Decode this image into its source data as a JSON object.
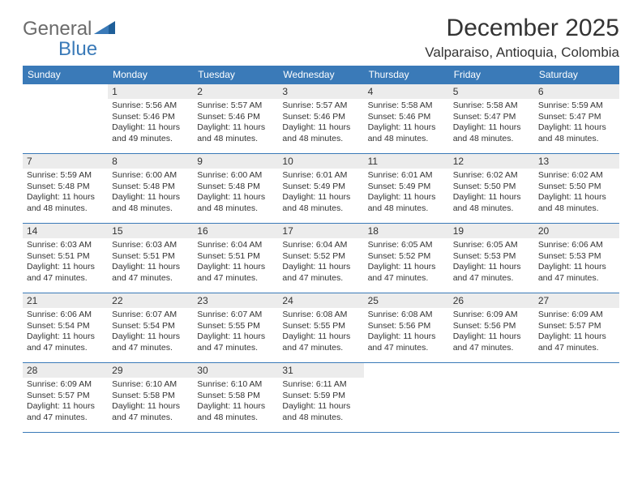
{
  "logo": {
    "general": "General",
    "blue": "Blue"
  },
  "title": "December 2025",
  "location": "Valparaiso, Antioquia, Colombia",
  "accent_color": "#3a7ab8",
  "daynum_bg": "#ececec",
  "text_color": "#333333",
  "background": "#ffffff",
  "row_border": "#3a7ab8",
  "cell_font_size": 10.5,
  "header_font_size": 12,
  "title_font_size": 30,
  "location_font_size": 17,
  "days": [
    "Sunday",
    "Monday",
    "Tuesday",
    "Wednesday",
    "Thursday",
    "Friday",
    "Saturday"
  ],
  "weeks": [
    [
      {
        "n": "",
        "sunrise": "",
        "sunset": "",
        "daylight": ""
      },
      {
        "n": "1",
        "sunrise": "Sunrise: 5:56 AM",
        "sunset": "Sunset: 5:46 PM",
        "daylight": "Daylight: 11 hours and 49 minutes."
      },
      {
        "n": "2",
        "sunrise": "Sunrise: 5:57 AM",
        "sunset": "Sunset: 5:46 PM",
        "daylight": "Daylight: 11 hours and 48 minutes."
      },
      {
        "n": "3",
        "sunrise": "Sunrise: 5:57 AM",
        "sunset": "Sunset: 5:46 PM",
        "daylight": "Daylight: 11 hours and 48 minutes."
      },
      {
        "n": "4",
        "sunrise": "Sunrise: 5:58 AM",
        "sunset": "Sunset: 5:46 PM",
        "daylight": "Daylight: 11 hours and 48 minutes."
      },
      {
        "n": "5",
        "sunrise": "Sunrise: 5:58 AM",
        "sunset": "Sunset: 5:47 PM",
        "daylight": "Daylight: 11 hours and 48 minutes."
      },
      {
        "n": "6",
        "sunrise": "Sunrise: 5:59 AM",
        "sunset": "Sunset: 5:47 PM",
        "daylight": "Daylight: 11 hours and 48 minutes."
      }
    ],
    [
      {
        "n": "7",
        "sunrise": "Sunrise: 5:59 AM",
        "sunset": "Sunset: 5:48 PM",
        "daylight": "Daylight: 11 hours and 48 minutes."
      },
      {
        "n": "8",
        "sunrise": "Sunrise: 6:00 AM",
        "sunset": "Sunset: 5:48 PM",
        "daylight": "Daylight: 11 hours and 48 minutes."
      },
      {
        "n": "9",
        "sunrise": "Sunrise: 6:00 AM",
        "sunset": "Sunset: 5:48 PM",
        "daylight": "Daylight: 11 hours and 48 minutes."
      },
      {
        "n": "10",
        "sunrise": "Sunrise: 6:01 AM",
        "sunset": "Sunset: 5:49 PM",
        "daylight": "Daylight: 11 hours and 48 minutes."
      },
      {
        "n": "11",
        "sunrise": "Sunrise: 6:01 AM",
        "sunset": "Sunset: 5:49 PM",
        "daylight": "Daylight: 11 hours and 48 minutes."
      },
      {
        "n": "12",
        "sunrise": "Sunrise: 6:02 AM",
        "sunset": "Sunset: 5:50 PM",
        "daylight": "Daylight: 11 hours and 48 minutes."
      },
      {
        "n": "13",
        "sunrise": "Sunrise: 6:02 AM",
        "sunset": "Sunset: 5:50 PM",
        "daylight": "Daylight: 11 hours and 48 minutes."
      }
    ],
    [
      {
        "n": "14",
        "sunrise": "Sunrise: 6:03 AM",
        "sunset": "Sunset: 5:51 PM",
        "daylight": "Daylight: 11 hours and 47 minutes."
      },
      {
        "n": "15",
        "sunrise": "Sunrise: 6:03 AM",
        "sunset": "Sunset: 5:51 PM",
        "daylight": "Daylight: 11 hours and 47 minutes."
      },
      {
        "n": "16",
        "sunrise": "Sunrise: 6:04 AM",
        "sunset": "Sunset: 5:51 PM",
        "daylight": "Daylight: 11 hours and 47 minutes."
      },
      {
        "n": "17",
        "sunrise": "Sunrise: 6:04 AM",
        "sunset": "Sunset: 5:52 PM",
        "daylight": "Daylight: 11 hours and 47 minutes."
      },
      {
        "n": "18",
        "sunrise": "Sunrise: 6:05 AM",
        "sunset": "Sunset: 5:52 PM",
        "daylight": "Daylight: 11 hours and 47 minutes."
      },
      {
        "n": "19",
        "sunrise": "Sunrise: 6:05 AM",
        "sunset": "Sunset: 5:53 PM",
        "daylight": "Daylight: 11 hours and 47 minutes."
      },
      {
        "n": "20",
        "sunrise": "Sunrise: 6:06 AM",
        "sunset": "Sunset: 5:53 PM",
        "daylight": "Daylight: 11 hours and 47 minutes."
      }
    ],
    [
      {
        "n": "21",
        "sunrise": "Sunrise: 6:06 AM",
        "sunset": "Sunset: 5:54 PM",
        "daylight": "Daylight: 11 hours and 47 minutes."
      },
      {
        "n": "22",
        "sunrise": "Sunrise: 6:07 AM",
        "sunset": "Sunset: 5:54 PM",
        "daylight": "Daylight: 11 hours and 47 minutes."
      },
      {
        "n": "23",
        "sunrise": "Sunrise: 6:07 AM",
        "sunset": "Sunset: 5:55 PM",
        "daylight": "Daylight: 11 hours and 47 minutes."
      },
      {
        "n": "24",
        "sunrise": "Sunrise: 6:08 AM",
        "sunset": "Sunset: 5:55 PM",
        "daylight": "Daylight: 11 hours and 47 minutes."
      },
      {
        "n": "25",
        "sunrise": "Sunrise: 6:08 AM",
        "sunset": "Sunset: 5:56 PM",
        "daylight": "Daylight: 11 hours and 47 minutes."
      },
      {
        "n": "26",
        "sunrise": "Sunrise: 6:09 AM",
        "sunset": "Sunset: 5:56 PM",
        "daylight": "Daylight: 11 hours and 47 minutes."
      },
      {
        "n": "27",
        "sunrise": "Sunrise: 6:09 AM",
        "sunset": "Sunset: 5:57 PM",
        "daylight": "Daylight: 11 hours and 47 minutes."
      }
    ],
    [
      {
        "n": "28",
        "sunrise": "Sunrise: 6:09 AM",
        "sunset": "Sunset: 5:57 PM",
        "daylight": "Daylight: 11 hours and 47 minutes."
      },
      {
        "n": "29",
        "sunrise": "Sunrise: 6:10 AM",
        "sunset": "Sunset: 5:58 PM",
        "daylight": "Daylight: 11 hours and 47 minutes."
      },
      {
        "n": "30",
        "sunrise": "Sunrise: 6:10 AM",
        "sunset": "Sunset: 5:58 PM",
        "daylight": "Daylight: 11 hours and 48 minutes."
      },
      {
        "n": "31",
        "sunrise": "Sunrise: 6:11 AM",
        "sunset": "Sunset: 5:59 PM",
        "daylight": "Daylight: 11 hours and 48 minutes."
      },
      {
        "n": "",
        "sunrise": "",
        "sunset": "",
        "daylight": ""
      },
      {
        "n": "",
        "sunrise": "",
        "sunset": "",
        "daylight": ""
      },
      {
        "n": "",
        "sunrise": "",
        "sunset": "",
        "daylight": ""
      }
    ]
  ]
}
